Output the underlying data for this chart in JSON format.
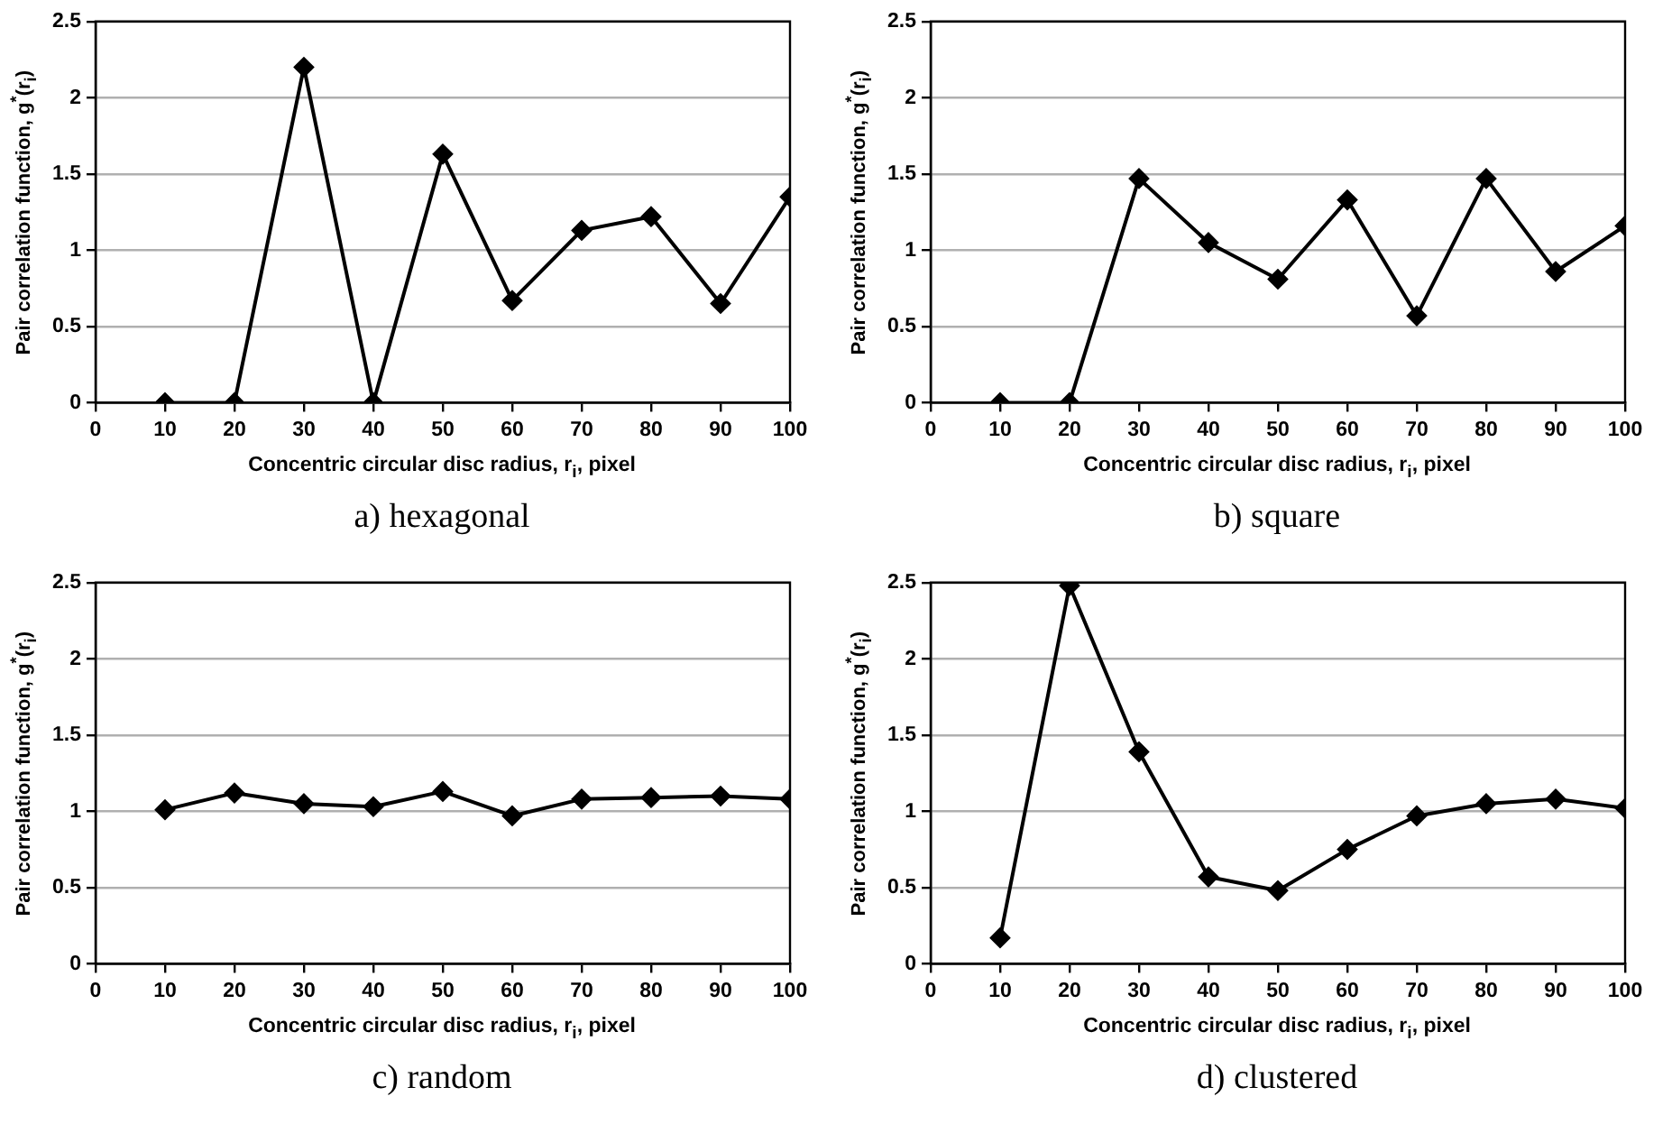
{
  "chart_data": [
    {
      "type": "line",
      "title": "a) hexagonal",
      "xlabel": "Concentric circular disc radius, r$_{i}$, pixel",
      "ylabel": "Pair correlation function, g$^{*}$(r$_{i}$)",
      "x": [
        10,
        20,
        30,
        40,
        50,
        60,
        70,
        80,
        90,
        100
      ],
      "series": [
        {
          "color": "#000000",
          "values": [
            0,
            0,
            2.2,
            0,
            1.63,
            0.67,
            1.13,
            1.22,
            0.65,
            1.35
          ]
        }
      ],
      "xlim": [
        0,
        100
      ],
      "xticks": [
        0,
        10,
        20,
        30,
        40,
        50,
        60,
        70,
        80,
        90,
        100
      ],
      "ylim": [
        0,
        2.5
      ],
      "yticks": [
        0,
        0.5,
        1,
        1.5,
        2,
        2.5
      ],
      "grid": "y",
      "marker": "diamond",
      "line_style": "solid"
    },
    {
      "type": "line",
      "title": "b) square",
      "xlabel": "Concentric circular disc radius, r$_{i}$, pixel",
      "ylabel": "Pair correlation function, g$^{*}$(r$_{i}$)",
      "x": [
        10,
        20,
        30,
        40,
        50,
        60,
        70,
        80,
        90,
        100
      ],
      "series": [
        {
          "color": "#000000",
          "values": [
            0,
            0,
            1.47,
            1.05,
            0.81,
            1.33,
            0.57,
            1.47,
            0.86,
            1.16
          ]
        }
      ],
      "xlim": [
        0,
        100
      ],
      "xticks": [
        0,
        10,
        20,
        30,
        40,
        50,
        60,
        70,
        80,
        90,
        100
      ],
      "ylim": [
        0,
        2.5
      ],
      "yticks": [
        0,
        0.5,
        1,
        1.5,
        2,
        2.5
      ],
      "grid": "y",
      "marker": "diamond",
      "line_style": "solid"
    },
    {
      "type": "line",
      "title": "c) random",
      "xlabel": "Concentric circular disc radius, r$_{i}$, pixel",
      "ylabel": "Pair correlation function, g$^{*}$(r$_{i}$)",
      "x": [
        10,
        20,
        30,
        40,
        50,
        60,
        70,
        80,
        90,
        100
      ],
      "series": [
        {
          "color": "#000000",
          "values": [
            1.01,
            1.12,
            1.05,
            1.03,
            1.13,
            0.97,
            1.08,
            1.09,
            1.1,
            1.08
          ]
        }
      ],
      "xlim": [
        0,
        100
      ],
      "xticks": [
        0,
        10,
        20,
        30,
        40,
        50,
        60,
        70,
        80,
        90,
        100
      ],
      "ylim": [
        0,
        2.5
      ],
      "yticks": [
        0,
        0.5,
        1,
        1.5,
        2,
        2.5
      ],
      "grid": "y",
      "marker": "diamond",
      "line_style": "solid"
    },
    {
      "type": "line",
      "title": "d) clustered",
      "xlabel": "Concentric circular disc radius, r$_{i}$, pixel",
      "ylabel": "Pair correlation function, g$^{*}$(r$_{i}$)",
      "x": [
        10,
        20,
        30,
        40,
        50,
        60,
        70,
        80,
        90,
        100
      ],
      "series": [
        {
          "color": "#000000",
          "values": [
            0.17,
            2.48,
            1.39,
            0.57,
            0.48,
            0.75,
            0.97,
            1.05,
            1.08,
            1.02
          ]
        }
      ],
      "xlim": [
        0,
        100
      ],
      "xticks": [
        0,
        10,
        20,
        30,
        40,
        50,
        60,
        70,
        80,
        90,
        100
      ],
      "ylim": [
        0,
        2.5
      ],
      "yticks": [
        0,
        0.5,
        1,
        1.5,
        2,
        2.5
      ],
      "grid": "y",
      "marker": "diamond",
      "line_style": "solid"
    }
  ]
}
